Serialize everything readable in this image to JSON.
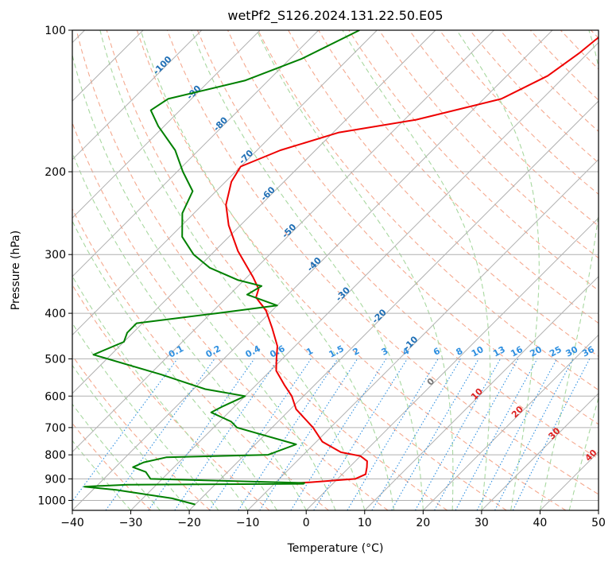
{
  "chart_data": {
    "type": "line",
    "title": "wetPf2_S126.2024.131.22.50.E05",
    "xlabel": "Temperature (°C)",
    "ylabel": "Pressure (hPa)",
    "xlim": [
      -40,
      50
    ],
    "ylim": [
      1050,
      100
    ],
    "y_scale": "log",
    "x_ticks": [
      -40,
      -30,
      -20,
      -10,
      0,
      10,
      20,
      30,
      40,
      50
    ],
    "y_ticks": [
      100,
      200,
      300,
      400,
      500,
      600,
      700,
      800,
      900,
      1000
    ],
    "grid": true,
    "colors": {
      "temperature": "#ee0000",
      "dewpoint": "#008000",
      "isotherm": "#b0b0b0",
      "dry_adiabat": "#f5a98f",
      "moist_adiabat": "#a8d8a0",
      "mixing_ratio": "#3090e0",
      "isotherm_label": "#1f6fb5",
      "moist_label": "#dd2222",
      "zero_label": "#777777",
      "lcl_curve": "#d8c4a8"
    },
    "isotherm_labels": [
      {
        "text": "-100",
        "T": -100,
        "p": 120
      },
      {
        "text": "-90",
        "T": -90,
        "p": 137
      },
      {
        "text": "-80",
        "T": -80,
        "p": 160
      },
      {
        "text": "-70",
        "T": -70,
        "p": 188
      },
      {
        "text": "-60",
        "T": -60,
        "p": 225
      },
      {
        "text": "-50",
        "T": -50,
        "p": 270
      },
      {
        "text": "-40",
        "T": -40,
        "p": 318
      },
      {
        "text": "-30",
        "T": -30,
        "p": 368
      },
      {
        "text": "-20",
        "T": -20,
        "p": 410
      },
      {
        "text": "-10",
        "T": -10,
        "p": 468
      }
    ],
    "mixing_ratio_labels": [
      "0.1",
      "0.2",
      "0.4",
      "0.6",
      "1",
      "1.5",
      "2",
      "3",
      "4",
      "6",
      "8",
      "10",
      "13",
      "16",
      "20",
      "25",
      "30",
      "36"
    ],
    "mixing_ratio_values": [
      0.1,
      0.2,
      0.4,
      0.6,
      1,
      1.5,
      2,
      3,
      4,
      6,
      8,
      10,
      13,
      16,
      20,
      25,
      30,
      36
    ],
    "moist_labels": [
      {
        "text": "0",
        "T": 0,
        "p": 565
      },
      {
        "text": "10",
        "T": 10,
        "p": 600
      },
      {
        "text": "20",
        "T": 20,
        "p": 655
      },
      {
        "text": "30",
        "T": 30,
        "p": 728
      },
      {
        "text": "40",
        "T": 40,
        "p": 810
      }
    ],
    "series": [
      {
        "key": "temperature",
        "points": [
          [
            -30.5,
            100
          ],
          [
            -31,
            105
          ],
          [
            -31.5,
            112
          ],
          [
            -33,
            125
          ],
          [
            -37,
            140
          ],
          [
            -48,
            155
          ],
          [
            -59,
            165
          ],
          [
            -66,
            180
          ],
          [
            -70,
            195
          ],
          [
            -69,
            210
          ],
          [
            -66,
            235
          ],
          [
            -62,
            260
          ],
          [
            -56,
            295
          ],
          [
            -49,
            335
          ],
          [
            -46,
            355
          ],
          [
            -45,
            370
          ],
          [
            -41,
            395
          ],
          [
            -37,
            430
          ],
          [
            -33,
            470
          ],
          [
            -31,
            500
          ],
          [
            -29,
            530
          ],
          [
            -25,
            570
          ],
          [
            -22,
            600
          ],
          [
            -19,
            640
          ],
          [
            -13,
            700
          ],
          [
            -9,
            750
          ],
          [
            -4,
            790
          ],
          [
            0,
            805
          ],
          [
            2,
            825
          ],
          [
            3,
            850
          ],
          [
            4,
            880
          ],
          [
            3,
            900
          ],
          [
            -4,
            915
          ],
          [
            -6,
            918
          ]
        ]
      },
      {
        "key": "dewpoint",
        "points": [
          [
            -73,
            100
          ],
          [
            -78,
            115
          ],
          [
            -84,
            128
          ],
          [
            -94,
            140
          ],
          [
            -95,
            148
          ],
          [
            -91,
            160
          ],
          [
            -84,
            180
          ],
          [
            -79,
            200
          ],
          [
            -74,
            220
          ],
          [
            -72,
            245
          ],
          [
            -68,
            275
          ],
          [
            -63,
            300
          ],
          [
            -58,
            320
          ],
          [
            -51,
            340
          ],
          [
            -46,
            350
          ],
          [
            -47,
            365
          ],
          [
            -40,
            385
          ],
          [
            -49,
            400
          ],
          [
            -61,
            420
          ],
          [
            -61,
            440
          ],
          [
            -60,
            460
          ],
          [
            -63,
            490
          ],
          [
            -48,
            540
          ],
          [
            -38,
            580
          ],
          [
            -30,
            600
          ],
          [
            -32,
            630
          ],
          [
            -33,
            650
          ],
          [
            -28,
            680
          ],
          [
            -26,
            700
          ],
          [
            -13,
            760
          ],
          [
            -16,
            800
          ],
          [
            -33,
            810
          ],
          [
            -36,
            830
          ],
          [
            -37,
            850
          ],
          [
            -34,
            870
          ],
          [
            -32,
            900
          ],
          [
            -17,
            910
          ],
          [
            -5,
            918
          ],
          [
            -5,
            922
          ],
          [
            -35,
            926
          ],
          [
            -42,
            935
          ],
          [
            -36,
            950
          ],
          [
            -25,
            990
          ],
          [
            -20,
            1020
          ]
        ]
      }
    ],
    "lcl_curve_temps": [
      -91,
      -84
    ]
  }
}
